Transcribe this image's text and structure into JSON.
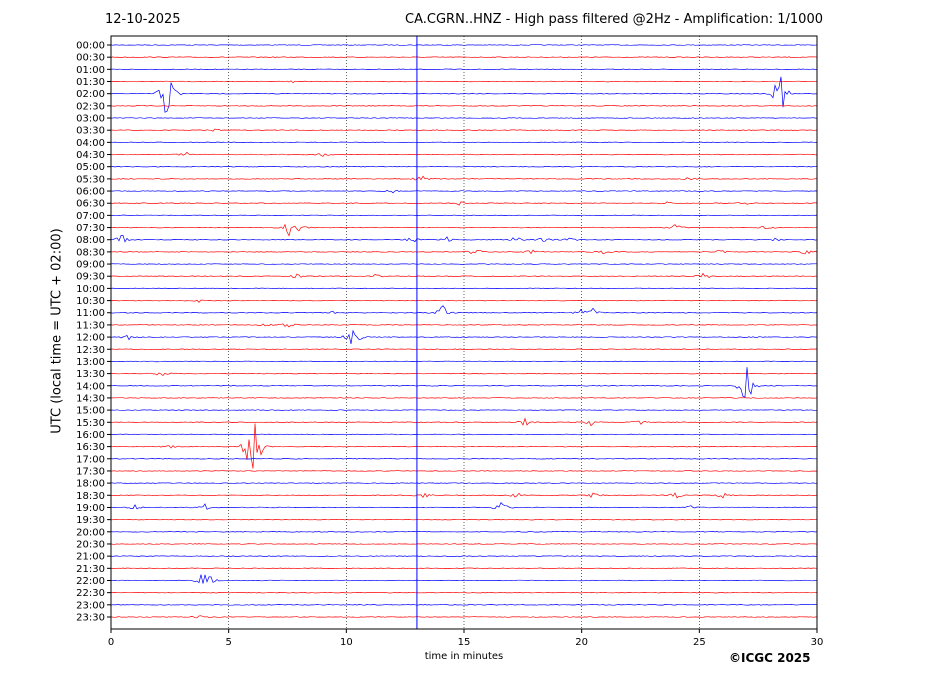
{
  "header": {
    "date": "12-10-2025",
    "title": "CA.CGRN..HNZ - High pass filtered @2Hz - Amplification: 1/1000"
  },
  "footer": {
    "copyright": "©ICGC 2025"
  },
  "colors": {
    "trace_even": "#0000ff",
    "trace_odd": "#ff0000",
    "grid": "#000000"
  },
  "chart_data": {
    "type": "line",
    "title": "CA.CGRN..HNZ - High pass filtered @2Hz - Amplification: 1/1000",
    "xlabel": "time in minutes",
    "ylabel": "UTC (local time = UTC + 02:00)",
    "xlim": [
      0,
      30
    ],
    "x_ticks": [
      0,
      5,
      10,
      15,
      20,
      25,
      30
    ],
    "grid": "vertical dotted at 5-minute ticks",
    "rows": [
      "00:00",
      "00:30",
      "01:00",
      "01:30",
      "02:00",
      "02:30",
      "03:00",
      "03:30",
      "04:00",
      "04:30",
      "05:00",
      "05:30",
      "06:00",
      "06:30",
      "07:00",
      "07:30",
      "08:00",
      "08:30",
      "09:00",
      "09:30",
      "10:00",
      "10:30",
      "11:00",
      "11:30",
      "12:00",
      "12:30",
      "13:00",
      "13:30",
      "14:00",
      "14:30",
      "15:00",
      "15:30",
      "16:00",
      "16:30",
      "17:00",
      "17:30",
      "18:00",
      "18:30",
      "19:00",
      "19:30",
      "20:00",
      "20:30",
      "21:00",
      "21:30",
      "22:00",
      "22:30",
      "23:00",
      "23:30"
    ],
    "row_colors": "alternating blue (even rows) and red (odd rows)",
    "events": [
      {
        "row": "01:30",
        "minute": 7.8,
        "amp": 0.4
      },
      {
        "row": "02:00",
        "minute": 2.4,
        "amp": 10
      },
      {
        "row": "02:00",
        "minute": 28.4,
        "amp": 9
      },
      {
        "row": "03:30",
        "minute": 4.4,
        "amp": 0.4
      },
      {
        "row": "04:30",
        "minute": 3.2,
        "amp": 0.6
      },
      {
        "row": "04:30",
        "minute": 9.0,
        "amp": 0.5
      },
      {
        "row": "05:30",
        "minute": 13.2,
        "amp": 1.0
      },
      {
        "row": "05:30",
        "minute": 24.5,
        "amp": 0.6
      },
      {
        "row": "06:00",
        "minute": 11.9,
        "amp": 0.6
      },
      {
        "row": "06:30",
        "minute": 14.8,
        "amp": 0.5
      },
      {
        "row": "06:30",
        "minute": 23.6,
        "amp": 0.5
      },
      {
        "row": "06:30",
        "minute": 26.9,
        "amp": 0.4
      },
      {
        "row": "07:30",
        "minute": 7.5,
        "amp": 3.8
      },
      {
        "row": "07:30",
        "minute": 8.0,
        "amp": 1.0
      },
      {
        "row": "07:30",
        "minute": 24.0,
        "amp": 0.8
      },
      {
        "row": "07:30",
        "minute": 27.9,
        "amp": 0.9
      },
      {
        "row": "08:00",
        "minute": 0.5,
        "amp": 1.8
      },
      {
        "row": "08:00",
        "minute": 12.8,
        "amp": 0.9
      },
      {
        "row": "08:00",
        "minute": 14.3,
        "amp": 0.9
      },
      {
        "row": "08:00",
        "minute": 17.2,
        "amp": 0.9
      },
      {
        "row": "08:00",
        "minute": 18.4,
        "amp": 0.9
      },
      {
        "row": "08:00",
        "minute": 19.5,
        "amp": 0.7
      },
      {
        "row": "08:00",
        "minute": 28.2,
        "amp": 0.8
      },
      {
        "row": "08:30",
        "minute": 15.5,
        "amp": 1.2
      },
      {
        "row": "08:30",
        "minute": 17.8,
        "amp": 1.0
      },
      {
        "row": "08:30",
        "minute": 20.8,
        "amp": 1.0
      },
      {
        "row": "08:30",
        "minute": 25.9,
        "amp": 0.6
      },
      {
        "row": "08:30",
        "minute": 29.5,
        "amp": 0.9
      },
      {
        "row": "09:30",
        "minute": 7.9,
        "amp": 0.8
      },
      {
        "row": "09:30",
        "minute": 11.3,
        "amp": 0.7
      },
      {
        "row": "09:30",
        "minute": 25.2,
        "amp": 0.9
      },
      {
        "row": "10:30",
        "minute": 3.7,
        "amp": 0.5
      },
      {
        "row": "11:00",
        "minute": 9.5,
        "amp": 0.5
      },
      {
        "row": "11:00",
        "minute": 14.1,
        "amp": 2.5
      },
      {
        "row": "11:00",
        "minute": 20.0,
        "amp": 1.0
      },
      {
        "row": "11:00",
        "minute": 20.5,
        "amp": 1.4
      },
      {
        "row": "11:30",
        "minute": 6.5,
        "amp": 0.6
      },
      {
        "row": "11:30",
        "minute": 7.5,
        "amp": 0.8
      },
      {
        "row": "12:00",
        "minute": 0.7,
        "amp": 1.0
      },
      {
        "row": "12:00",
        "minute": 10.3,
        "amp": 3.5
      },
      {
        "row": "13:30",
        "minute": 2.1,
        "amp": 0.8
      },
      {
        "row": "14:00",
        "minute": 27.0,
        "amp": 7.0
      },
      {
        "row": "15:30",
        "minute": 17.6,
        "amp": 1.0
      },
      {
        "row": "15:30",
        "minute": 20.4,
        "amp": 1.0
      },
      {
        "row": "15:30",
        "minute": 22.5,
        "amp": 0.8
      },
      {
        "row": "16:30",
        "minute": 2.5,
        "amp": 0.6
      },
      {
        "row": "16:30",
        "minute": 6.0,
        "amp": 13
      },
      {
        "row": "16:30",
        "minute": 6.4,
        "amp": 1.0
      },
      {
        "row": "18:30",
        "minute": 13.3,
        "amp": 0.9
      },
      {
        "row": "18:30",
        "minute": 17.3,
        "amp": 0.9
      },
      {
        "row": "18:30",
        "minute": 20.5,
        "amp": 0.9
      },
      {
        "row": "18:30",
        "minute": 24.0,
        "amp": 0.8
      },
      {
        "row": "18:30",
        "minute": 26.0,
        "amp": 0.8
      },
      {
        "row": "19:00",
        "minute": 1.0,
        "amp": 0.7
      },
      {
        "row": "19:00",
        "minute": 4.0,
        "amp": 0.9
      },
      {
        "row": "19:00",
        "minute": 16.6,
        "amp": 1.5
      },
      {
        "row": "19:00",
        "minute": 24.7,
        "amp": 0.6
      },
      {
        "row": "22:00",
        "minute": 4.0,
        "amp": 4.0
      },
      {
        "row": "23:30",
        "minute": 3.9,
        "amp": 0.9
      }
    ]
  }
}
